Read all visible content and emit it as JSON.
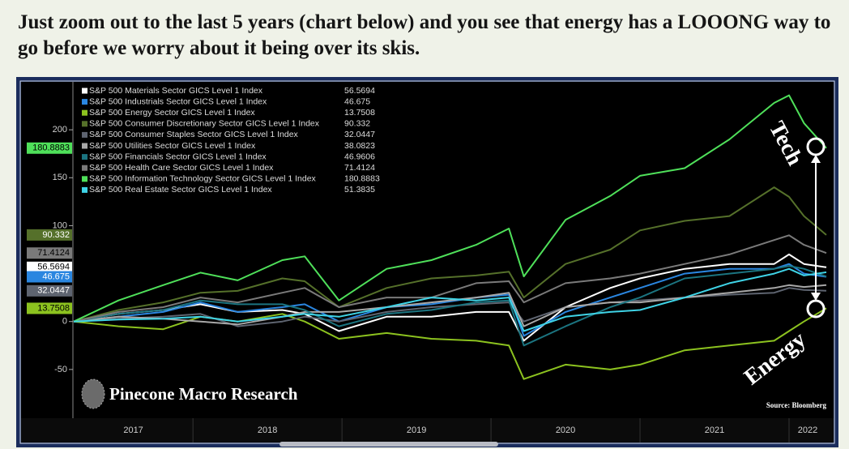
{
  "header": {
    "title": "Just zoom out to the last 5 years (chart below) and you see that energy has a LOOONG way to go before we worry about it being over its skis."
  },
  "chart_data": {
    "type": "line",
    "x": [
      2017.2,
      2017.5,
      2017.8,
      2018.05,
      2018.3,
      2018.6,
      2018.75,
      2018.98,
      2019.3,
      2019.6,
      2019.9,
      2020.12,
      2020.22,
      2020.5,
      2020.8,
      2021.0,
      2021.3,
      2021.6,
      2021.9,
      2022.0,
      2022.1,
      2022.25
    ],
    "xlim": [
      2017.2,
      2022.25
    ],
    "xticks": [
      2018,
      2019,
      2020,
      2021,
      2022
    ],
    "x_labels": [
      2017,
      2018,
      2019,
      2020,
      2021,
      2022
    ],
    "ylim": [
      -100,
      250
    ],
    "yticks": [
      -50,
      0,
      100,
      150,
      200
    ],
    "series": [
      {
        "name": "S&P 500 Materials Sector GICS Level 1 Index",
        "color": "#ffffff",
        "values": [
          0,
          8,
          12,
          18,
          10,
          12,
          8,
          -10,
          5,
          5,
          10,
          10,
          -20,
          15,
          35,
          45,
          55,
          60,
          60,
          70,
          60,
          56.5694
        ]
      },
      {
        "name": "S&P 500 Industrials Sector GICS Level 1 Index",
        "color": "#2a86e0",
        "values": [
          0,
          5,
          10,
          20,
          10,
          15,
          18,
          0,
          15,
          18,
          25,
          28,
          -15,
          10,
          25,
          35,
          50,
          55,
          55,
          60,
          50,
          46.675
        ]
      },
      {
        "name": "S&P 500 Energy Sector GICS Level 1 Index",
        "color": "#8cc21f",
        "values": [
          0,
          -5,
          -8,
          5,
          0,
          8,
          0,
          -18,
          -12,
          -18,
          -20,
          -25,
          -60,
          -45,
          -50,
          -45,
          -30,
          -25,
          -20,
          -10,
          0,
          13.7508
        ]
      },
      {
        "name": "S&P 500 Consumer Discretionary Sector GICS Level 1 Index",
        "color": "#55702a",
        "values": [
          0,
          12,
          20,
          30,
          32,
          45,
          42,
          15,
          35,
          45,
          48,
          52,
          25,
          60,
          75,
          95,
          105,
          110,
          140,
          130,
          110,
          90.332
        ]
      },
      {
        "name": "S&P 500 Consumer Staples Sector GICS Level 1 Index",
        "color": "#5e6470",
        "values": [
          0,
          3,
          5,
          8,
          -5,
          0,
          5,
          0,
          10,
          15,
          18,
          20,
          0,
          15,
          20,
          22,
          25,
          28,
          30,
          35,
          33,
          32.0447
        ]
      },
      {
        "name": "S&P 500 Utilities Sector GICS Level 1 Index",
        "color": "#a8a8a8",
        "values": [
          0,
          5,
          3,
          0,
          -3,
          5,
          10,
          10,
          15,
          20,
          25,
          30,
          -5,
          15,
          20,
          20,
          25,
          30,
          35,
          38,
          36,
          38.0823
        ]
      },
      {
        "name": "S&P 500 Financials Sector GICS Level 1 Index",
        "color": "#1b7480",
        "values": [
          0,
          8,
          12,
          22,
          18,
          18,
          12,
          -5,
          8,
          12,
          20,
          22,
          -25,
          -5,
          15,
          25,
          45,
          50,
          55,
          58,
          55,
          46.9606
        ]
      },
      {
        "name": "S&P 500 Health Care Sector GICS Level 1 Index",
        "color": "#7a7a7a",
        "values": [
          0,
          10,
          15,
          25,
          20,
          30,
          35,
          15,
          25,
          25,
          40,
          42,
          20,
          40,
          45,
          50,
          60,
          70,
          85,
          90,
          80,
          71.4124
        ]
      },
      {
        "name": "S&P 500 Information Technology Sector GICS Level 1 Index",
        "color": "#4fe05a",
        "values": [
          0,
          22,
          38,
          51,
          43,
          64,
          68,
          22,
          55,
          64,
          80,
          97,
          47,
          106,
          131,
          152,
          160,
          190,
          228,
          236,
          207,
          180.8883
        ]
      },
      {
        "name": "S&P 500 Real Estate Sector GICS Level 1 Index",
        "color": "#3fd3e6",
        "values": [
          0,
          2,
          3,
          5,
          0,
          5,
          8,
          5,
          15,
          25,
          22,
          25,
          -10,
          5,
          10,
          12,
          25,
          40,
          50,
          55,
          48,
          51.3835
        ]
      }
    ],
    "axis_badges": [
      8,
      3,
      7,
      0,
      1,
      4,
      2
    ],
    "annotations": [
      "Tech",
      "Energy"
    ],
    "watermark": "Pinecone Macro Research",
    "source": "Source: Bloomberg"
  }
}
